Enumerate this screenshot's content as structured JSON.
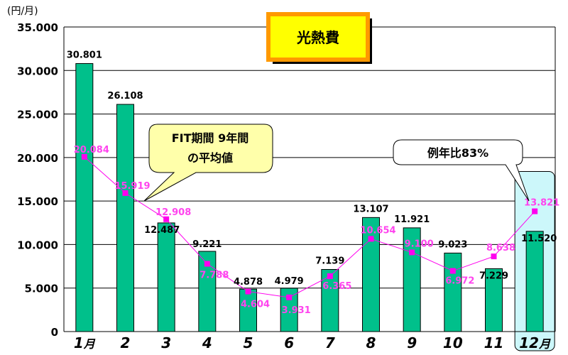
{
  "chart_data": {
    "type": "bar",
    "title": "光熱費",
    "unit_label": "(円/月)",
    "categories": [
      "1",
      "2",
      "3",
      "4",
      "5",
      "6",
      "7",
      "8",
      "9",
      "10",
      "11",
      "12"
    ],
    "category_suffix": "月",
    "series": [
      {
        "type": "bar",
        "values": [
          30801,
          26108,
          12487,
          9221,
          4878,
          4979,
          7139,
          13107,
          11921,
          9023,
          7229,
          11520
        ],
        "labels": [
          "30.801",
          "26.108",
          "12.487",
          "9.221",
          "4.878",
          "4.979",
          "7.139",
          "13.107",
          "11.921",
          "9.023",
          "7.229",
          "11.520"
        ],
        "color": "#00c08b"
      },
      {
        "type": "line",
        "values": [
          20084,
          15919,
          12908,
          7788,
          4604,
          3931,
          6365,
          10654,
          9100,
          6972,
          8638,
          13821
        ],
        "labels": [
          "20.084",
          "15.919",
          "12.908",
          "7.788",
          "4.604",
          "3.931",
          "6.365",
          "10.654",
          "9.100",
          "6.972",
          "8.638",
          "13.821"
        ],
        "color": "#ff00ee"
      }
    ],
    "yticks": [
      "0",
      "5.000",
      "10.000",
      "15.000",
      "20.000",
      "25.000",
      "30.000",
      "35.000"
    ],
    "ylim": [
      0,
      35000
    ],
    "grid": true,
    "annotations": [
      {
        "line1": "FIT期間 9年間",
        "line2": "の平均値"
      },
      {
        "text": "例年比83%"
      }
    ],
    "highlight_category": "12",
    "colors": {
      "title_box_fill": "#ffff00",
      "title_box_border": "#ff9900",
      "callout_fill": "#ffffaa",
      "highlight_fill": "#ccf7fa"
    }
  }
}
